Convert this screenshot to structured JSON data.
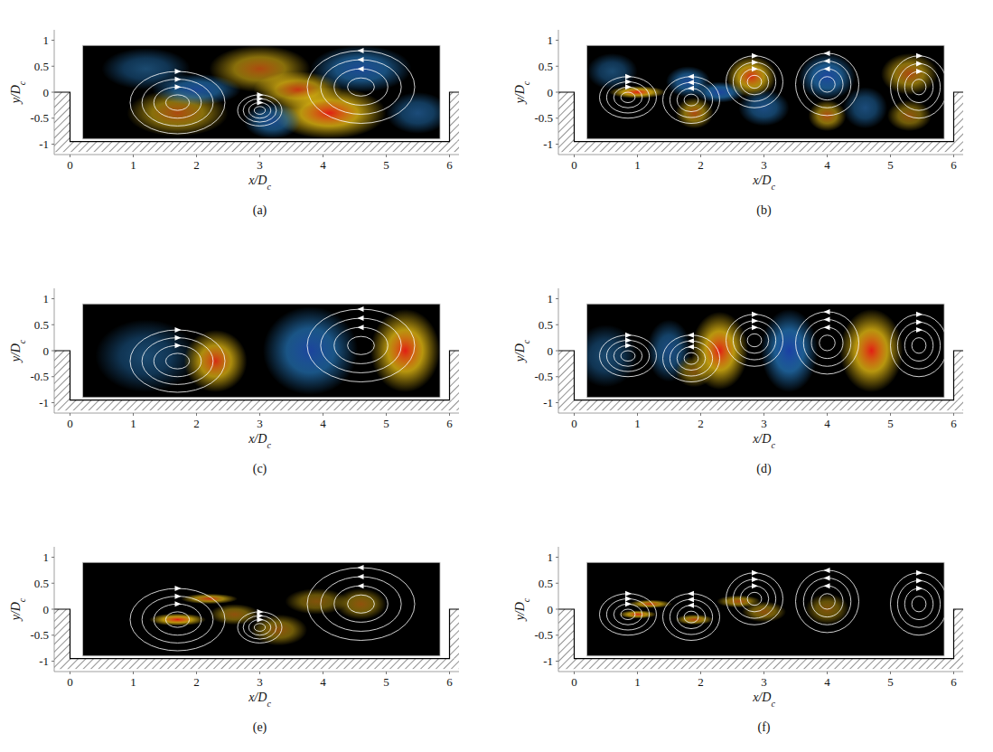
{
  "chart_data": [
    {
      "type": "contour",
      "label": "(a)",
      "xlabel": "x/Dc",
      "ylabel": "y/Dc",
      "xlim": [
        -0.25,
        6.15
      ],
      "ylim": [
        -1.2,
        1.2
      ],
      "xticks": [
        0,
        1,
        2,
        3,
        4,
        5,
        6
      ],
      "yticks": [
        -1,
        -0.5,
        0,
        0.5,
        1
      ],
      "clim": [
        -1,
        1
      ],
      "blobs": [
        {
          "x": 1.7,
          "y": -0.4,
          "rx": 0.8,
          "ry": 0.45,
          "value": 0.6
        },
        {
          "x": 2.0,
          "y": 0.05,
          "rx": 0.7,
          "ry": 0.3,
          "value": -0.7
        },
        {
          "x": 1.2,
          "y": 0.45,
          "rx": 0.7,
          "ry": 0.4,
          "value": -0.3
        },
        {
          "x": 3.0,
          "y": 0.45,
          "rx": 0.8,
          "ry": 0.45,
          "value": 0.6
        },
        {
          "x": 3.6,
          "y": 0.05,
          "rx": 0.7,
          "ry": 0.35,
          "value": 0.8
        },
        {
          "x": 4.1,
          "y": -0.4,
          "rx": 0.9,
          "ry": 0.5,
          "value": 1.0
        },
        {
          "x": 3.2,
          "y": -0.55,
          "rx": 0.45,
          "ry": 0.35,
          "value": -0.6
        },
        {
          "x": 4.6,
          "y": 0.45,
          "rx": 0.8,
          "ry": 0.45,
          "value": -0.7
        },
        {
          "x": 5.5,
          "y": -0.4,
          "rx": 0.5,
          "ry": 0.4,
          "value": -0.4
        }
      ],
      "vortices": [
        {
          "x": 1.7,
          "y": -0.2,
          "rx": 0.75,
          "ry": 0.6,
          "sign": 1
        },
        {
          "x": 3.0,
          "y": -0.35,
          "rx": 0.35,
          "ry": 0.3,
          "sign": 1
        },
        {
          "x": 4.6,
          "y": 0.1,
          "rx": 0.85,
          "ry": 0.7,
          "sign": -1
        }
      ]
    },
    {
      "type": "contour",
      "label": "(b)",
      "xlabel": "x/Dc",
      "ylabel": "y/Dc",
      "xlim": [
        -0.25,
        6.15
      ],
      "ylim": [
        -1.2,
        1.2
      ],
      "xticks": [
        0,
        1,
        2,
        3,
        4,
        5,
        6
      ],
      "yticks": [
        -1,
        -0.5,
        0,
        0.5,
        1
      ],
      "clim": [
        -1,
        1
      ],
      "blobs": [
        {
          "x": 0.6,
          "y": 0.4,
          "rx": 0.4,
          "ry": 0.35,
          "value": -0.3
        },
        {
          "x": 1.0,
          "y": 0.0,
          "rx": 0.45,
          "ry": 0.12,
          "value": 1.0
        },
        {
          "x": 1.8,
          "y": 0.2,
          "rx": 0.35,
          "ry": 0.3,
          "value": -0.7
        },
        {
          "x": 2.3,
          "y": 0.0,
          "rx": 0.4,
          "ry": 0.2,
          "value": -0.8
        },
        {
          "x": 1.9,
          "y": -0.4,
          "rx": 0.3,
          "ry": 0.3,
          "value": 0.6
        },
        {
          "x": 2.8,
          "y": 0.3,
          "rx": 0.4,
          "ry": 0.4,
          "value": 0.9
        },
        {
          "x": 3.0,
          "y": -0.3,
          "rx": 0.4,
          "ry": 0.35,
          "value": -0.5
        },
        {
          "x": 4.0,
          "y": 0.3,
          "rx": 0.45,
          "ry": 0.45,
          "value": -0.8
        },
        {
          "x": 4.0,
          "y": -0.45,
          "rx": 0.3,
          "ry": 0.3,
          "value": 0.6
        },
        {
          "x": 4.6,
          "y": -0.3,
          "rx": 0.35,
          "ry": 0.4,
          "value": -0.4
        },
        {
          "x": 5.3,
          "y": 0.35,
          "rx": 0.45,
          "ry": 0.4,
          "value": 0.6
        },
        {
          "x": 5.3,
          "y": -0.45,
          "rx": 0.35,
          "ry": 0.3,
          "value": 0.4
        }
      ],
      "vortices": [
        {
          "x": 0.85,
          "y": -0.1,
          "rx": 0.45,
          "ry": 0.4,
          "sign": 1
        },
        {
          "x": 1.85,
          "y": -0.15,
          "rx": 0.45,
          "ry": 0.45,
          "sign": -1
        },
        {
          "x": 2.85,
          "y": 0.2,
          "rx": 0.45,
          "ry": 0.5,
          "sign": 1
        },
        {
          "x": 4.0,
          "y": 0.15,
          "rx": 0.5,
          "ry": 0.6,
          "sign": -1
        },
        {
          "x": 5.45,
          "y": 0.1,
          "rx": 0.45,
          "ry": 0.6,
          "sign": 1
        }
      ]
    },
    {
      "type": "contour",
      "label": "(c)",
      "xlabel": "x/Dc",
      "ylabel": "y/Dc",
      "xlim": [
        -0.25,
        6.15
      ],
      "ylim": [
        -1.2,
        1.2
      ],
      "xticks": [
        0,
        1,
        2,
        3,
        4,
        5,
        6
      ],
      "yticks": [
        -1,
        -0.5,
        0,
        0.5,
        1
      ],
      "clim": [
        -1,
        1
      ],
      "blobs": [
        {
          "x": 1.2,
          "y": -0.1,
          "rx": 0.8,
          "ry": 0.7,
          "value": -0.3
        },
        {
          "x": 2.3,
          "y": -0.2,
          "rx": 0.5,
          "ry": 0.6,
          "value": 0.9
        },
        {
          "x": 3.8,
          "y": 0.0,
          "rx": 0.75,
          "ry": 0.85,
          "value": -0.8
        },
        {
          "x": 5.3,
          "y": 0.0,
          "rx": 0.55,
          "ry": 0.8,
          "value": 1.0
        }
      ],
      "vortices": [
        {
          "x": 1.7,
          "y": -0.2,
          "rx": 0.75,
          "ry": 0.6,
          "sign": 1
        },
        {
          "x": 4.6,
          "y": 0.1,
          "rx": 0.85,
          "ry": 0.7,
          "sign": -1
        }
      ]
    },
    {
      "type": "contour",
      "label": "(d)",
      "xlabel": "x/Dc",
      "ylabel": "y/Dc",
      "xlim": [
        -0.25,
        6.15
      ],
      "ylim": [
        -1.2,
        1.2
      ],
      "xticks": [
        0,
        1,
        2,
        3,
        4,
        5,
        6
      ],
      "yticks": [
        -1,
        -0.5,
        0,
        0.5,
        1
      ],
      "clim": [
        -1,
        1
      ],
      "blobs": [
        {
          "x": 0.5,
          "y": -0.1,
          "rx": 0.5,
          "ry": 0.6,
          "value": -0.3
        },
        {
          "x": 1.5,
          "y": 0.0,
          "rx": 0.35,
          "ry": 0.6,
          "value": -0.5
        },
        {
          "x": 1.9,
          "y": -0.4,
          "rx": 0.3,
          "ry": 0.3,
          "value": 0.3
        },
        {
          "x": 2.3,
          "y": 0.0,
          "rx": 0.45,
          "ry": 0.75,
          "value": 1.0
        },
        {
          "x": 3.4,
          "y": 0.0,
          "rx": 0.45,
          "ry": 0.8,
          "value": -0.9
        },
        {
          "x": 4.7,
          "y": 0.0,
          "rx": 0.5,
          "ry": 0.8,
          "value": 1.0
        }
      ],
      "vortices": [
        {
          "x": 0.85,
          "y": -0.1,
          "rx": 0.45,
          "ry": 0.4,
          "sign": 1
        },
        {
          "x": 1.85,
          "y": -0.15,
          "rx": 0.45,
          "ry": 0.45,
          "sign": -1
        },
        {
          "x": 2.85,
          "y": 0.2,
          "rx": 0.45,
          "ry": 0.5,
          "sign": 1
        },
        {
          "x": 4.0,
          "y": 0.15,
          "rx": 0.5,
          "ry": 0.6,
          "sign": -1
        },
        {
          "x": 5.45,
          "y": 0.1,
          "rx": 0.45,
          "ry": 0.6,
          "sign": 1
        }
      ]
    },
    {
      "type": "contour",
      "label": "(e)",
      "xlabel": "x/Dc",
      "ylabel": "y/Dc",
      "xlim": [
        -0.25,
        6.15
      ],
      "ylim": [
        -1.2,
        1.2
      ],
      "xticks": [
        0,
        1,
        2,
        3,
        4,
        5,
        6
      ],
      "yticks": [
        -1,
        -0.5,
        0,
        0.5,
        1
      ],
      "clim": [
        0,
        1
      ],
      "blobs": [
        {
          "x": 1.7,
          "y": -0.2,
          "rx": 0.45,
          "ry": 0.12,
          "value": 1.0
        },
        {
          "x": 2.2,
          "y": 0.2,
          "rx": 0.45,
          "ry": 0.1,
          "value": 0.8
        },
        {
          "x": 2.6,
          "y": -0.1,
          "rx": 0.4,
          "ry": 0.2,
          "value": 0.4
        },
        {
          "x": 3.3,
          "y": -0.4,
          "rx": 0.45,
          "ry": 0.3,
          "value": 0.4
        },
        {
          "x": 3.9,
          "y": 0.15,
          "rx": 0.5,
          "ry": 0.25,
          "value": 0.3
        },
        {
          "x": 4.6,
          "y": 0.1,
          "rx": 0.4,
          "ry": 0.3,
          "value": 0.4
        }
      ],
      "vortices": [
        {
          "x": 1.7,
          "y": -0.2,
          "rx": 0.75,
          "ry": 0.6,
          "sign": 1
        },
        {
          "x": 3.0,
          "y": -0.35,
          "rx": 0.35,
          "ry": 0.3,
          "sign": 1
        },
        {
          "x": 4.6,
          "y": 0.1,
          "rx": 0.85,
          "ry": 0.7,
          "sign": -1
        }
      ]
    },
    {
      "type": "contour",
      "label": "(f)",
      "xlabel": "x/Dc",
      "ylabel": "y/Dc",
      "xlim": [
        -0.25,
        6.15
      ],
      "ylim": [
        -1.2,
        1.2
      ],
      "xticks": [
        0,
        1,
        2,
        3,
        4,
        5,
        6
      ],
      "yticks": [
        -1,
        -0.5,
        0,
        0.5,
        1
      ],
      "clim": [
        0,
        1
      ],
      "blobs": [
        {
          "x": 1.0,
          "y": -0.1,
          "rx": 0.3,
          "ry": 0.08,
          "value": 0.9
        },
        {
          "x": 1.2,
          "y": 0.1,
          "rx": 0.35,
          "ry": 0.08,
          "value": 0.8
        },
        {
          "x": 1.9,
          "y": -0.2,
          "rx": 0.3,
          "ry": 0.1,
          "value": 0.7
        },
        {
          "x": 2.6,
          "y": 0.15,
          "rx": 0.35,
          "ry": 0.12,
          "value": 0.6
        },
        {
          "x": 3.0,
          "y": -0.05,
          "rx": 0.35,
          "ry": 0.2,
          "value": 0.4
        },
        {
          "x": 4.0,
          "y": 0.0,
          "rx": 0.35,
          "ry": 0.3,
          "value": 0.3
        }
      ],
      "vortices": [
        {
          "x": 0.85,
          "y": -0.1,
          "rx": 0.45,
          "ry": 0.4,
          "sign": 1
        },
        {
          "x": 1.85,
          "y": -0.15,
          "rx": 0.45,
          "ry": 0.45,
          "sign": -1
        },
        {
          "x": 2.85,
          "y": 0.2,
          "rx": 0.45,
          "ry": 0.5,
          "sign": 1
        },
        {
          "x": 4.0,
          "y": 0.15,
          "rx": 0.5,
          "ry": 0.6,
          "sign": -1
        },
        {
          "x": 5.45,
          "y": 0.1,
          "rx": 0.45,
          "ry": 0.6,
          "sign": 1
        }
      ]
    }
  ]
}
